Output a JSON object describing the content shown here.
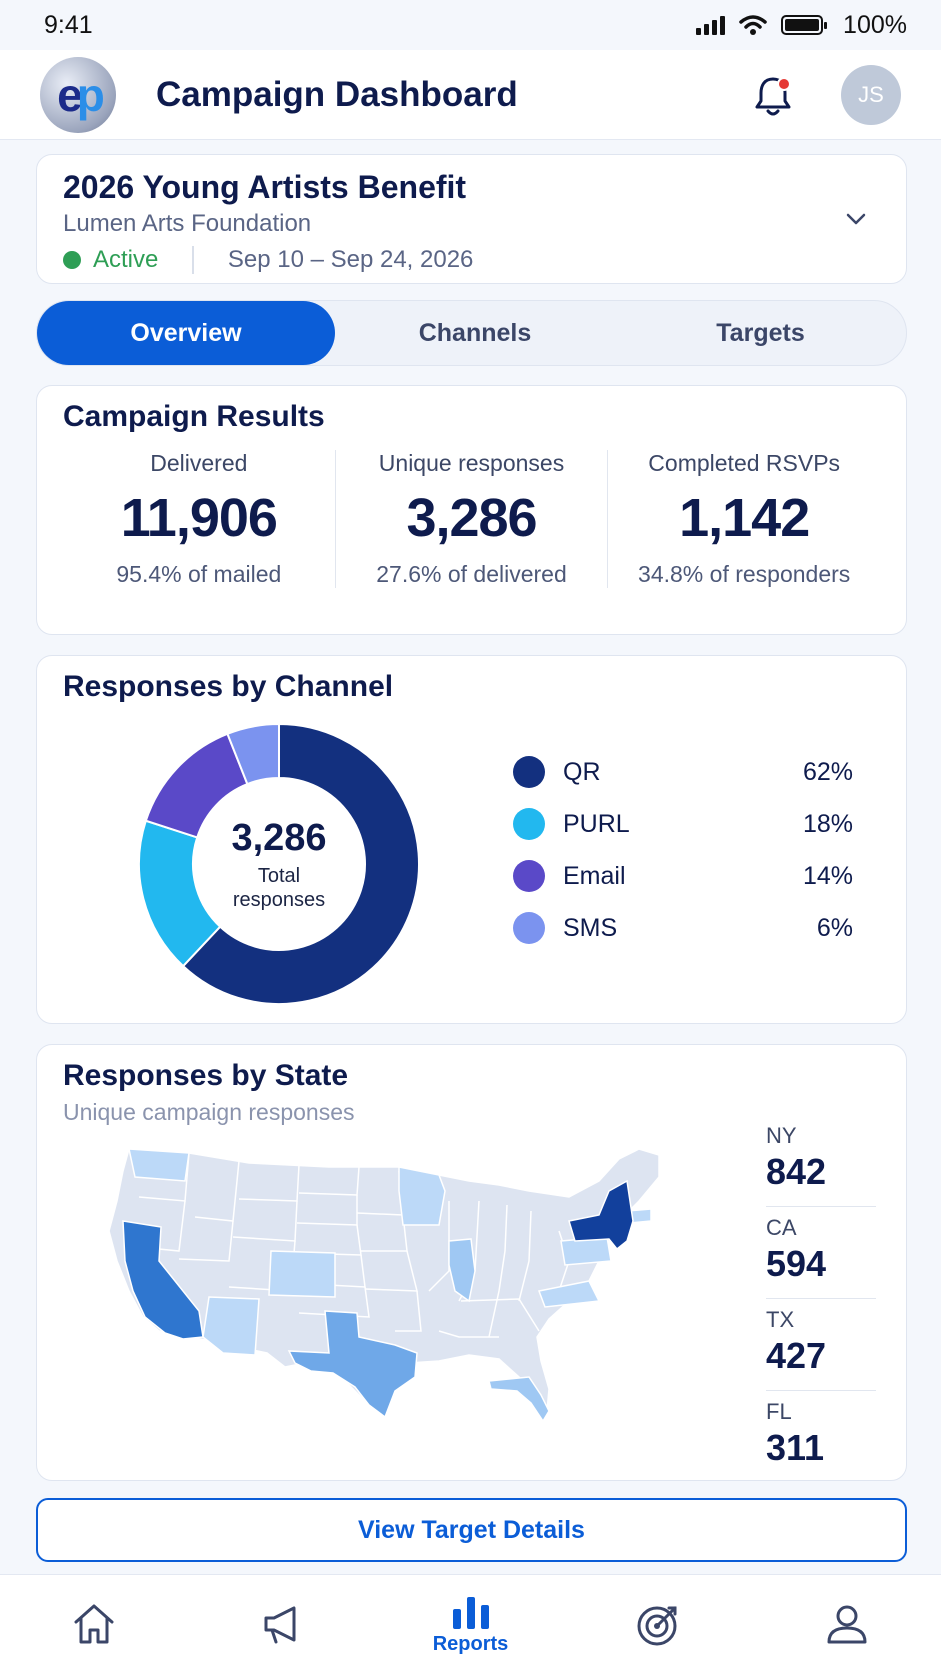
{
  "status_bar": {
    "time": "9:41",
    "battery": "100%"
  },
  "app_bar": {
    "logo_text_e": "e",
    "logo_text_p": "p",
    "title": "Campaign Dashboard",
    "avatar_initials": "JS"
  },
  "campaign": {
    "name": "2026 Young Artists Benefit",
    "organization": "Lumen Arts Foundation",
    "status": "Active",
    "dates": "Sep 10 – Sep 24, 2026",
    "status_color": "#2e9e55"
  },
  "tabs": [
    {
      "label": "Overview",
      "active": true
    },
    {
      "label": "Channels",
      "active": false
    },
    {
      "label": "Targets",
      "active": false
    }
  ],
  "results": {
    "title": "Campaign Results",
    "metrics": [
      {
        "label": "Delivered",
        "value": "11,906",
        "note": "95.4% of mailed"
      },
      {
        "label": "Unique responses",
        "value": "3,286",
        "note": "27.6% of delivered"
      },
      {
        "label": "Completed RSVPs",
        "value": "1,142",
        "note": "34.8% of responders"
      }
    ]
  },
  "channels": {
    "title": "Responses by Channel",
    "center_value": "3,286",
    "center_label": "Total responses",
    "legend": [
      {
        "name": "QR",
        "pct": "62%",
        "value": 62,
        "color": "#13307f"
      },
      {
        "name": "PURL",
        "pct": "18%",
        "value": 18,
        "color": "#22b8ef"
      },
      {
        "name": "Email",
        "pct": "14%",
        "value": 14,
        "color": "#5a49c8"
      },
      {
        "name": "SMS",
        "pct": "6%",
        "value": 6,
        "color": "#7b93ef"
      }
    ]
  },
  "chart_data": {
    "type": "pie",
    "categories": [
      "QR",
      "PURL",
      "Email",
      "SMS"
    ],
    "values": [
      62,
      18,
      14,
      6
    ],
    "title": "Responses by Channel"
  },
  "states": {
    "title": "Responses by State",
    "subtitle": "Unique campaign responses",
    "top": [
      {
        "code": "NY",
        "count": "842"
      },
      {
        "code": "CA",
        "count": "594"
      },
      {
        "code": "TX",
        "count": "427"
      },
      {
        "code": "FL",
        "count": "311"
      }
    ],
    "colors": {
      "base": "#dde4f1",
      "light": "#bcd9f8",
      "mid": "#9fc8f3",
      "strong": "#6fa8e8",
      "deep": "#2f76cf",
      "darkest": "#12409c"
    }
  },
  "cta": {
    "label": "View Target Details"
  },
  "bottom_nav": {
    "items": [
      {
        "name": "home-icon",
        "label": ""
      },
      {
        "name": "megaphone-icon",
        "label": ""
      },
      {
        "name": "reports-icon",
        "label": "Reports",
        "active": true
      },
      {
        "name": "target-icon",
        "label": ""
      },
      {
        "name": "profile-icon",
        "label": ""
      }
    ],
    "active_color": "#0b5dd7"
  }
}
